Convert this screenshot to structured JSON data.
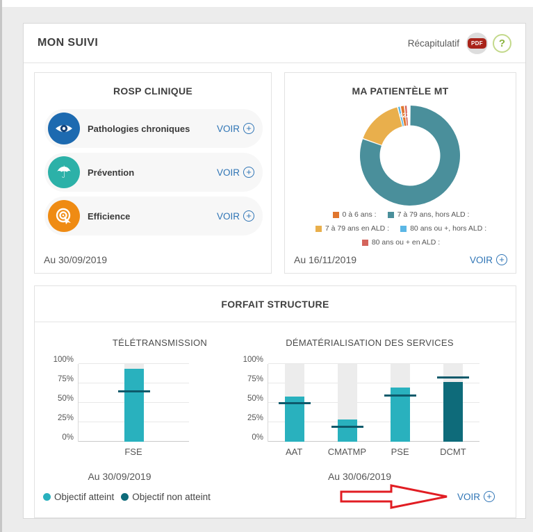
{
  "window": {
    "title": "MON SUIVI"
  },
  "header": {
    "recap_label": "Récapitulatif",
    "pdf_badge": "PDF",
    "help_label": "?"
  },
  "colors": {
    "teal": "#29b1be",
    "dark_teal": "#0e6b7a",
    "threshold": "#0d5a6b",
    "link_blue": "#2e74b5",
    "arrow_red": "#e11d23",
    "track_gray": "#ececec"
  },
  "rosp_card": {
    "title": "ROSP CLINIQUE",
    "voir_label": "VOIR",
    "items": [
      {
        "label": "Pathologies chroniques",
        "icon": "eye-icon",
        "icon_color": "#1d6ab0"
      },
      {
        "label": "Prévention",
        "icon": "umbrella-icon",
        "icon_color": "#2cb1a8"
      },
      {
        "label": "Efficience",
        "icon": "target-cursor-icon",
        "icon_color": "#ef8b13"
      }
    ],
    "date": "Au 30/09/2019"
  },
  "patientele_card": {
    "title": "MA PATIENTÈLE MT",
    "date": "Au 16/11/2019",
    "voir_label": "VOIR",
    "sliver_label": "422",
    "legend": [
      {
        "label": "0 à 6 ans :",
        "color": "#e0762e"
      },
      {
        "label": "7 à 79 ans, hors ALD :",
        "color": "#4a8f9b"
      },
      {
        "label": "7 à 79 ans en ALD :",
        "color": "#e9af4c"
      },
      {
        "label": "80 ans ou +, hors ALD :",
        "color": "#5bb7e5"
      },
      {
        "label": "80 ans ou + en ALD :",
        "color": "#d4645c"
      }
    ]
  },
  "forfait_card": {
    "title": "FORFAIT STRUCTURE",
    "voir_label": "VOIR",
    "legend": [
      {
        "label": "Objectif atteint",
        "color": "#29b1be"
      },
      {
        "label": "Objectif non atteint",
        "color": "#0e6b7a"
      }
    ]
  },
  "chart_data": [
    {
      "type": "pie",
      "title": "MA PATIENTÈLE MT",
      "subtype": "donut",
      "as_of": "Au 16/11/2019",
      "note": "values after ':' are not displayed in the legend",
      "segments": [
        {
          "label": "7 à 79 ans, hors ALD :",
          "color": "#4a8f9b",
          "percent_est": 80.5
        },
        {
          "label": "7 à 79 ans en ALD :",
          "color": "#e9af4c",
          "percent_est": 15.5
        },
        {
          "label": "80 ans ou +, hors ALD :",
          "color": "#5bb7e5",
          "percent_est": 0.9
        },
        {
          "label": "0 à 6 ans :",
          "color": "#e0762e",
          "percent_est": 1.3
        },
        {
          "label": "80 ans ou + en ALD :",
          "color": "#d4645c",
          "percent_est": 0.9
        }
      ],
      "legend_position": "bottom"
    },
    {
      "type": "bar",
      "title": "TÉLÉTRANSMISSION",
      "as_of": "Au 30/09/2019",
      "ylim": [
        0,
        100
      ],
      "yticks": [
        "0%",
        "25%",
        "50%",
        "75%",
        "100%"
      ],
      "grid": true,
      "bars": [
        {
          "label": "FSE",
          "value": 94,
          "target": 65,
          "status": "atteint"
        }
      ]
    },
    {
      "type": "bar",
      "title": "DÉMATÉRIALISATION DES SERVICES",
      "as_of": "Au 30/06/2019",
      "ylim": [
        0,
        100
      ],
      "yticks": [
        "0%",
        "25%",
        "50%",
        "75%",
        "100%"
      ],
      "grid": true,
      "bars": [
        {
          "label": "AAT",
          "value": 58,
          "target": 50,
          "status": "atteint"
        },
        {
          "label": "CMATMP",
          "value": 29,
          "target": 19,
          "status": "atteint"
        },
        {
          "label": "PSE",
          "value": 70,
          "target": 59,
          "status": "atteint"
        },
        {
          "label": "DCMT",
          "value": 77,
          "target": 83,
          "status": "non atteint"
        }
      ]
    }
  ]
}
